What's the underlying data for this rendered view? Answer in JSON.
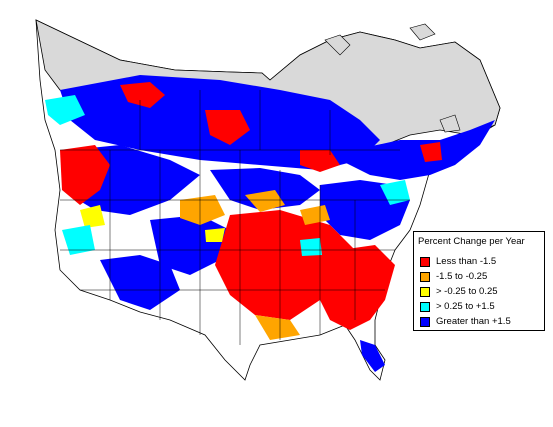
{
  "map": {
    "colors": {
      "background": "#ffffff",
      "canada_north": "#d9d9d9",
      "land": "#ffffff",
      "border": "#000000"
    }
  },
  "legend": {
    "title": "Percent Change per Year",
    "items": [
      {
        "label": "Less than -1.5",
        "color": "#ff0000"
      },
      {
        "label": "-1.5 to -0.25",
        "color": "#ffa500"
      },
      {
        "label": "> -0.25 to 0.25",
        "color": "#ffff00"
      },
      {
        "label": "> 0.25 to +1.5",
        "color": "#00ffff"
      },
      {
        "label": "Greater than +1.5",
        "color": "#0000ff"
      }
    ]
  }
}
